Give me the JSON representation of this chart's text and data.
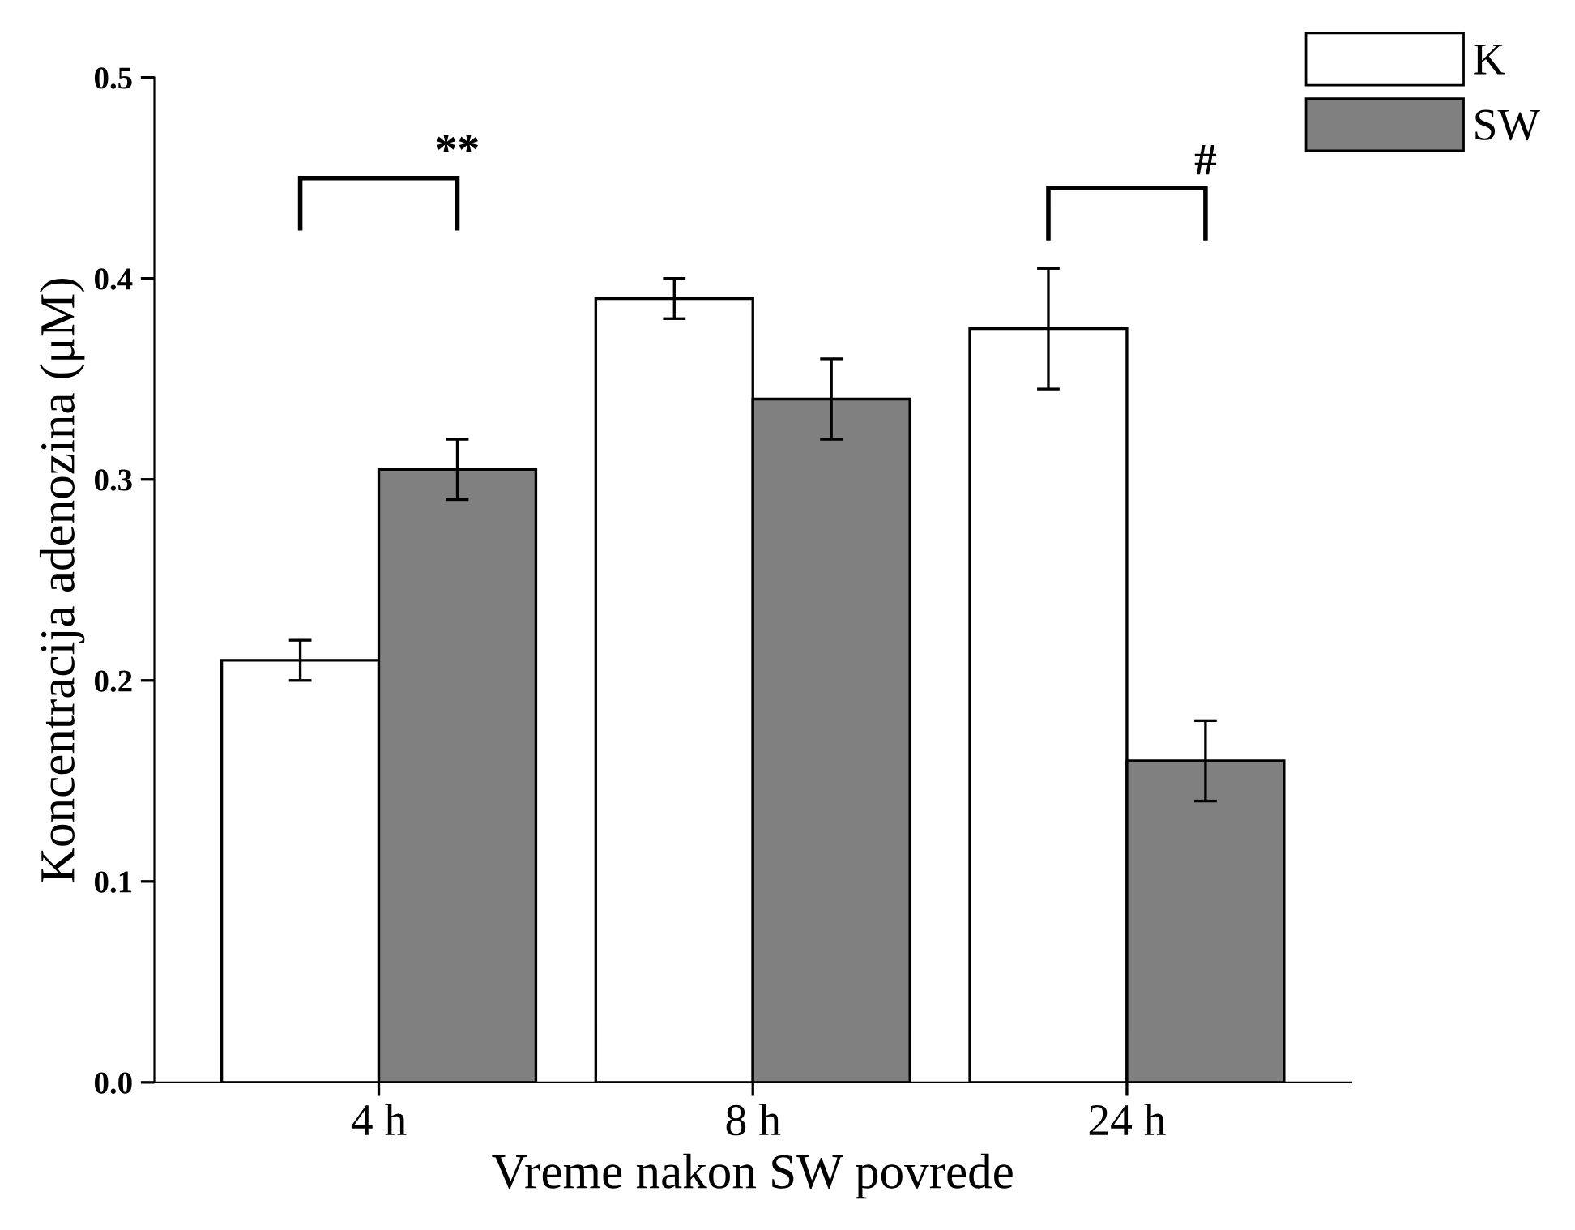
{
  "chart_data": {
    "type": "bar",
    "categories": [
      "4 h",
      "8 h",
      "24 h"
    ],
    "series": [
      {
        "name": "K",
        "color": "#ffffff",
        "values": [
          0.21,
          0.39,
          0.375
        ],
        "errors": [
          0.01,
          0.01,
          0.03
        ]
      },
      {
        "name": "SW",
        "color": "#808080",
        "values": [
          0.305,
          0.34,
          0.16
        ],
        "errors": [
          0.015,
          0.02,
          0.02
        ]
      }
    ],
    "xlabel": "Vreme nakon SW povrede",
    "ylabel": "Koncentracija adenozina (μM)",
    "ylim": [
      0,
      0.5
    ],
    "yticks": [
      {
        "value": 0,
        "label": "0.0"
      },
      {
        "value": 0.1,
        "label": "0.1"
      },
      {
        "value": 0.2,
        "label": "0.2"
      },
      {
        "value": 0.3,
        "label": "0.3"
      },
      {
        "value": 0.4,
        "label": "0.4"
      },
      {
        "value": 0.5,
        "label": "0.5"
      }
    ],
    "annotations": [
      "**",
      "#"
    ],
    "grid": false,
    "legend": "top right"
  }
}
